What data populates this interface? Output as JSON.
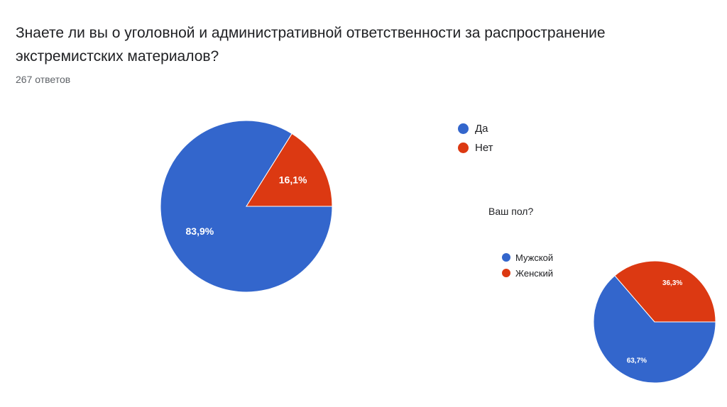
{
  "header": {
    "question": "Знаете ли вы о уголовной и административной ответственности за распространение экстремистских материалов?",
    "responses": "267 ответов"
  },
  "subchart": {
    "title": "Ваш пол?"
  },
  "colors": {
    "blue": "#3366cc",
    "red": "#dc3912"
  },
  "chart_data": [
    {
      "type": "pie",
      "title": "Знаете ли вы о уголовной и административной ответственности за распространение экстремистских материалов?",
      "slices": [
        {
          "label": "Да",
          "value": 83.9,
          "text": "83,9%",
          "color": "#3366cc"
        },
        {
          "label": "Нет",
          "value": 16.1,
          "text": "16,1%",
          "color": "#dc3912"
        }
      ],
      "legend": "right"
    },
    {
      "type": "pie",
      "title": "Ваш пол?",
      "slices": [
        {
          "label": "Мужской",
          "value": 63.7,
          "text": "63,7%",
          "color": "#3366cc"
        },
        {
          "label": "Женский",
          "value": 36.3,
          "text": "36,3%",
          "color": "#dc3912"
        }
      ],
      "legend": "left"
    }
  ]
}
